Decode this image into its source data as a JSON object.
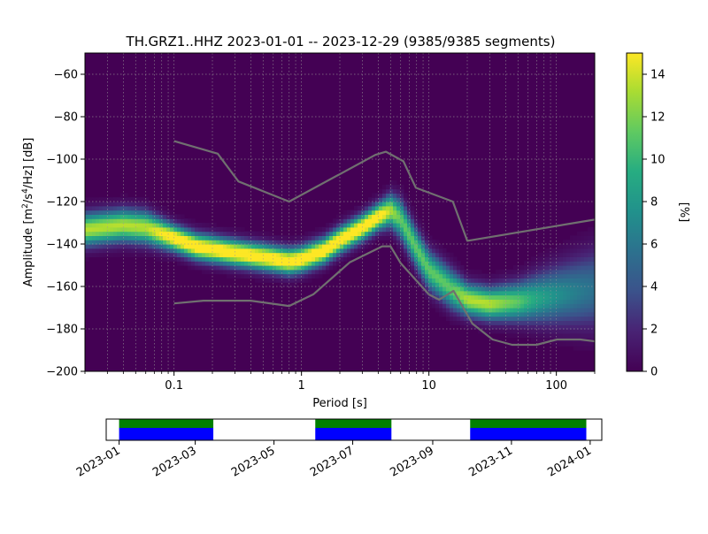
{
  "chart_data": {
    "type": "heatmap",
    "title": "TH.GRZ1..HHZ   2023-01-01 -- 2023-12-29  (9385/9385 segments)",
    "xlabel": "Period [s]",
    "ylabel": "Amplitude [m²/s⁴/Hz] [dB]",
    "x_scale": "log",
    "xlim": [
      0.02,
      200
    ],
    "ylim": [
      -200,
      -50
    ],
    "x_ticks": [
      {
        "value": 0.1,
        "label": "0.1"
      },
      {
        "value": 1,
        "label": "1"
      },
      {
        "value": 10,
        "label": "10"
      },
      {
        "value": 100,
        "label": "100"
      }
    ],
    "y_ticks": [
      -60,
      -80,
      -100,
      -120,
      -140,
      -160,
      -180,
      -200
    ],
    "grid": true,
    "colormap": "viridis",
    "colorbar": {
      "label": "[%]",
      "range": [
        0,
        15
      ],
      "ticks": [
        0,
        2,
        4,
        6,
        8,
        10,
        12,
        14
      ]
    },
    "mode_curve": {
      "period": [
        0.02,
        0.04,
        0.06,
        0.1,
        0.15,
        0.3,
        0.5,
        0.8,
        1.0,
        1.5,
        2.0,
        3.0,
        4.0,
        5.0,
        6.0,
        8.0,
        10.0,
        15.0,
        20.0,
        30.0,
        50.0,
        100.0,
        200.0
      ],
      "amplitude": [
        -133,
        -131,
        -132,
        -137,
        -141,
        -144,
        -146,
        -148,
        -147,
        -143,
        -138,
        -132,
        -127,
        -124,
        -128,
        -142,
        -152,
        -161,
        -166,
        -168,
        -167,
        -164,
        -161
      ],
      "spread_db": [
        5,
        5,
        5,
        4,
        4,
        4,
        4,
        4,
        4,
        4,
        4,
        4,
        4,
        5,
        6,
        6,
        6,
        6,
        5,
        5,
        6,
        9,
        12
      ]
    },
    "nhnm": {
      "period": [
        0.1,
        0.22,
        0.32,
        0.8,
        3.8,
        4.6,
        6.3,
        7.9,
        15.4,
        20.0,
        354.8
      ],
      "amplitude": [
        -91.5,
        -97.4,
        -110.5,
        -120.0,
        -98.0,
        -96.5,
        -101.0,
        -113.5,
        -120.0,
        -138.5,
        -126.0
      ]
    },
    "nlnm": {
      "period": [
        0.1,
        0.17,
        0.4,
        0.8,
        1.24,
        2.4,
        4.3,
        5.0,
        6.0,
        10.0,
        12.0,
        15.6,
        21.9,
        31.6,
        45.0,
        70.0,
        101.0,
        154.0,
        328.0
      ],
      "amplitude": [
        -168.0,
        -166.7,
        -166.7,
        -169.2,
        -163.7,
        -148.6,
        -141.1,
        -141.1,
        -149.0,
        -163.8,
        -166.2,
        -162.1,
        -177.5,
        -185.0,
        -187.5,
        -187.5,
        -185.0,
        -185.0,
        -187.5
      ]
    },
    "coverage": {
      "x_ticks": [
        "2023-01",
        "2023-03",
        "2023-05",
        "2023-07",
        "2023-09",
        "2023-11",
        "2024-01"
      ],
      "range": [
        "2022-12-22",
        "2024-01-10"
      ],
      "segments": [
        {
          "start": "2023-01-01",
          "end": "2023-03-15"
        },
        {
          "start": "2023-06-02",
          "end": "2023-07-31"
        },
        {
          "start": "2023-09-30",
          "end": "2023-12-29"
        }
      ],
      "colors": {
        "data": "#0000ff",
        "processed": "#008000"
      }
    }
  }
}
